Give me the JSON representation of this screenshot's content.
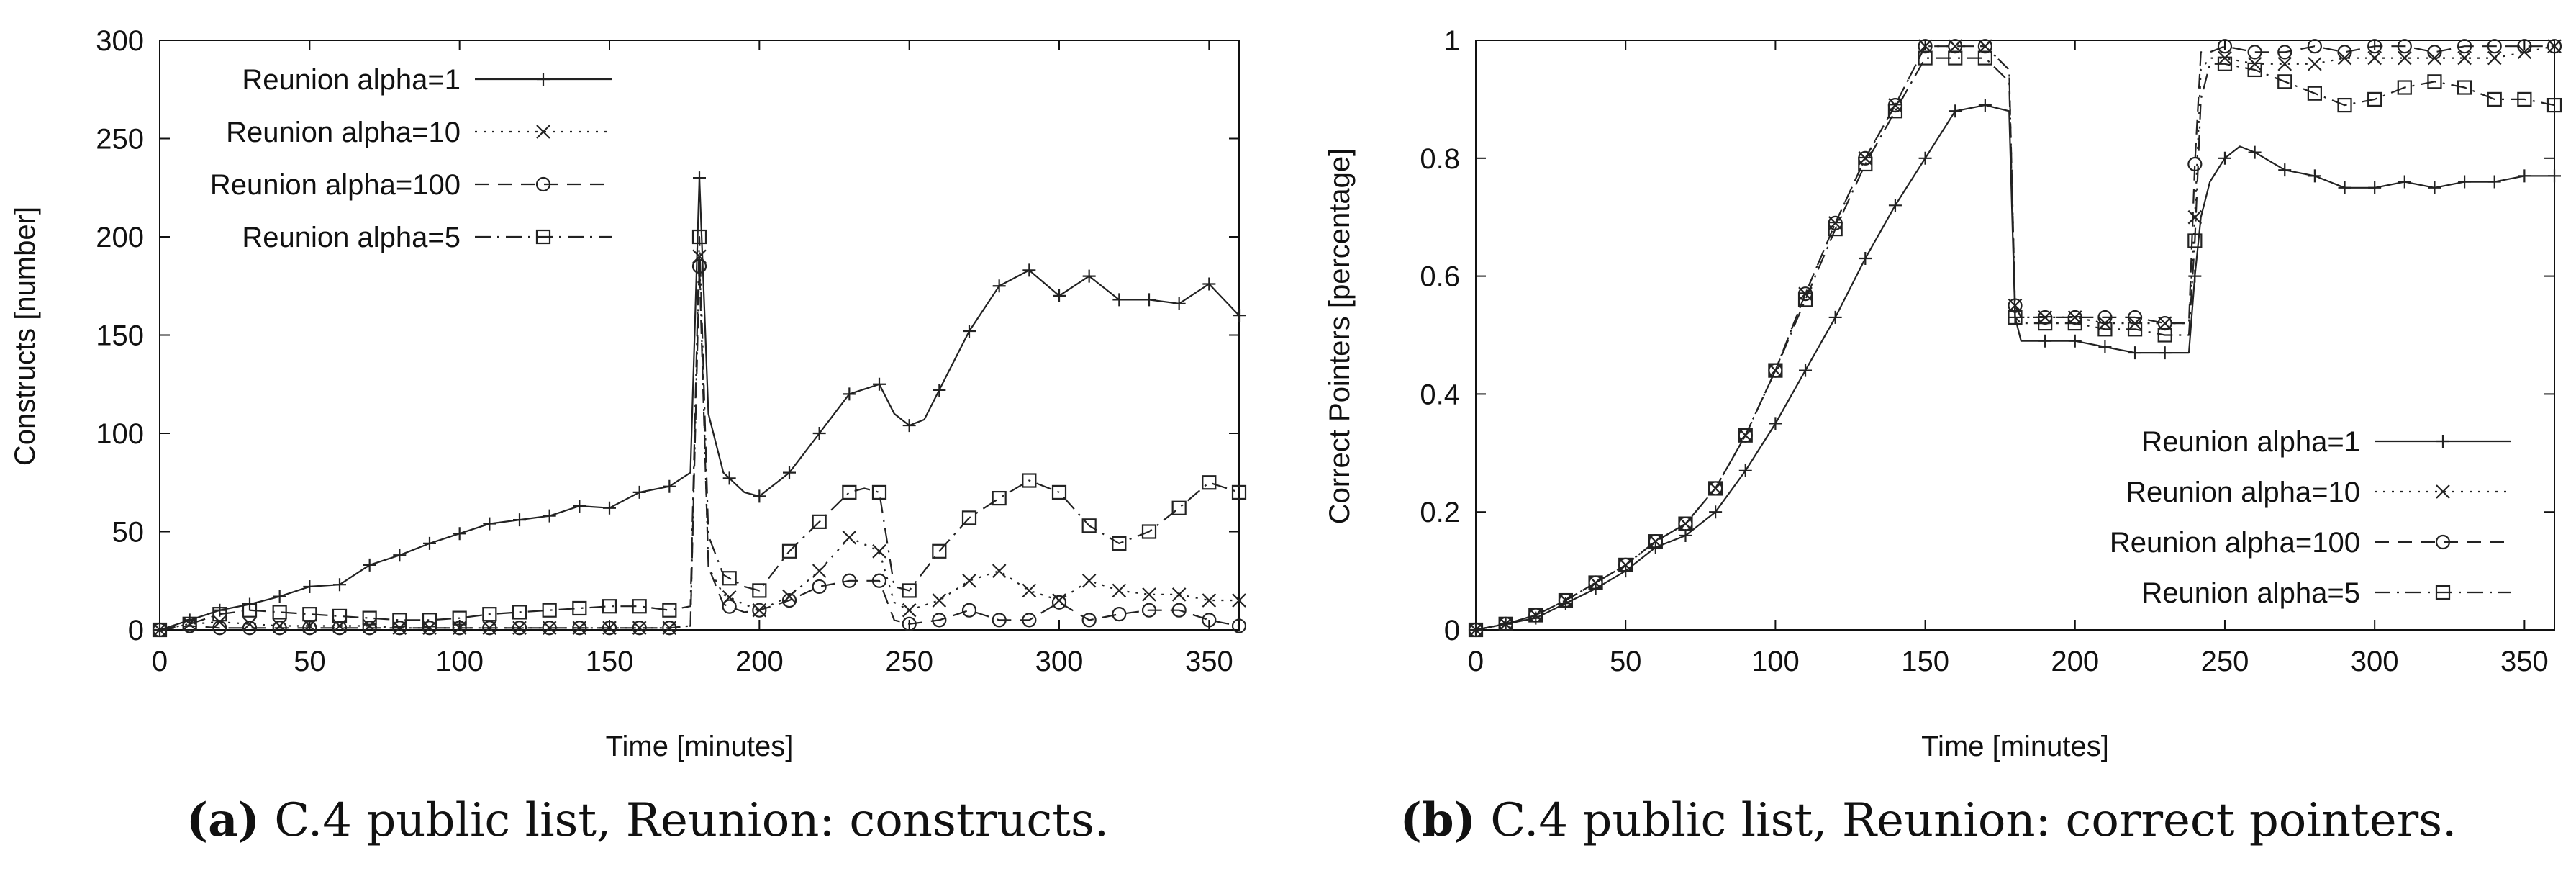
{
  "chart_data": [
    {
      "type": "line",
      "title": "",
      "xlabel": "Time [minutes]",
      "ylabel": "Constructs [number]",
      "xlim": [
        0,
        360
      ],
      "ylim": [
        0,
        300
      ],
      "xticks": [
        0,
        50,
        100,
        150,
        200,
        250,
        300,
        350
      ],
      "yticks": [
        0,
        50,
        100,
        150,
        200,
        250,
        300
      ],
      "xtick_labels": [
        "0",
        "50",
        "100",
        "150",
        "200",
        "250",
        "300",
        "350"
      ],
      "ytick_labels": [
        "0",
        "50",
        "100",
        "150",
        "200",
        "250",
        "300"
      ],
      "legend_position": "top-left",
      "caption": {
        "tag": "a",
        "text": "C.4 public list, Reunion: constructs."
      },
      "series": [
        {
          "name": "Reunion alpha=1",
          "marker": "plus",
          "dash": "solid",
          "x": [
            0,
            10,
            20,
            30,
            40,
            50,
            60,
            70,
            80,
            90,
            100,
            110,
            120,
            130,
            140,
            150,
            160,
            170,
            177,
            180,
            183,
            188,
            195,
            200,
            210,
            220,
            230,
            240,
            245,
            250,
            255,
            260,
            270,
            280,
            290,
            300,
            310,
            320,
            330,
            340,
            350,
            360
          ],
          "y": [
            0,
            5,
            10,
            13,
            17,
            22,
            23,
            33,
            38,
            44,
            49,
            54,
            56,
            58,
            63,
            62,
            70,
            73,
            80,
            230,
            110,
            80,
            70,
            68,
            80,
            100,
            120,
            125,
            110,
            104,
            107,
            122,
            152,
            175,
            183,
            170,
            180,
            168,
            168,
            166,
            176,
            160
          ]
        },
        {
          "name": "Reunion alpha=10",
          "marker": "x",
          "dash": "dot",
          "x": [
            0,
            10,
            20,
            30,
            40,
            50,
            60,
            70,
            80,
            90,
            100,
            110,
            120,
            130,
            140,
            150,
            160,
            170,
            177,
            180,
            183,
            188,
            195,
            200,
            210,
            220,
            230,
            240,
            245,
            250,
            260,
            270,
            280,
            290,
            300,
            310,
            320,
            330,
            340,
            350,
            360
          ],
          "y": [
            0,
            3,
            4,
            3,
            2,
            2,
            2,
            2,
            1,
            1,
            1,
            1,
            1,
            1,
            1,
            1,
            1,
            1,
            2,
            190,
            32,
            18,
            13,
            10,
            17,
            30,
            47,
            40,
            14,
            10,
            15,
            25,
            30,
            20,
            15,
            25,
            20,
            18,
            18,
            15,
            15
          ]
        },
        {
          "name": "Reunion alpha=100",
          "marker": "circle",
          "dash": "dash",
          "x": [
            0,
            10,
            20,
            30,
            40,
            50,
            60,
            70,
            80,
            90,
            100,
            110,
            120,
            130,
            140,
            150,
            160,
            170,
            177,
            180,
            183,
            188,
            195,
            200,
            210,
            220,
            230,
            240,
            245,
            250,
            260,
            270,
            280,
            290,
            300,
            310,
            320,
            330,
            340,
            350,
            360
          ],
          "y": [
            0,
            2,
            1,
            1,
            1,
            1,
            1,
            1,
            1,
            1,
            1,
            1,
            1,
            1,
            1,
            1,
            1,
            1,
            2,
            185,
            32,
            13,
            9,
            10,
            15,
            22,
            25,
            25,
            5,
            3,
            5,
            10,
            5,
            5,
            14,
            5,
            8,
            10,
            10,
            5,
            2
          ]
        },
        {
          "name": "Reunion alpha=5",
          "marker": "square",
          "dash": "dashdot",
          "x": [
            0,
            10,
            20,
            30,
            40,
            50,
            60,
            70,
            80,
            90,
            100,
            110,
            120,
            130,
            140,
            150,
            160,
            170,
            177,
            180,
            183,
            188,
            195,
            200,
            210,
            220,
            230,
            235,
            240,
            245,
            250,
            260,
            270,
            280,
            290,
            300,
            310,
            320,
            330,
            340,
            350,
            360
          ],
          "y": [
            0,
            3,
            8,
            10,
            9,
            8,
            7,
            6,
            5,
            5,
            6,
            8,
            9,
            10,
            11,
            12,
            12,
            10,
            12,
            200,
            48,
            28,
            22,
            20,
            40,
            55,
            70,
            72,
            70,
            22,
            20,
            40,
            57,
            67,
            76,
            70,
            53,
            44,
            50,
            62,
            75,
            70
          ]
        }
      ]
    },
    {
      "type": "line",
      "title": "",
      "xlabel": "Time [minutes]",
      "ylabel": "Correct Pointers [percentage]",
      "xlim": [
        0,
        360
      ],
      "ylim": [
        0,
        1
      ],
      "xticks": [
        0,
        50,
        100,
        150,
        200,
        250,
        300,
        350
      ],
      "yticks": [
        0,
        0.2,
        0.4,
        0.6,
        0.8,
        1
      ],
      "xtick_labels": [
        "0",
        "50",
        "100",
        "150",
        "200",
        "250",
        "300",
        "350"
      ],
      "ytick_labels": [
        "0",
        "0.2",
        "0.4",
        "0.6",
        "0.8",
        "1"
      ],
      "legend_position": "bottom-right",
      "caption": {
        "tag": "b",
        "text": "C.4 public list, Reunion: correct pointers."
      },
      "series": [
        {
          "name": "Reunion alpha=1",
          "marker": "plus",
          "dash": "solid",
          "x": [
            0,
            10,
            20,
            30,
            40,
            50,
            60,
            70,
            80,
            90,
            100,
            110,
            120,
            130,
            140,
            150,
            160,
            170,
            178,
            180,
            182,
            190,
            200,
            210,
            220,
            230,
            238,
            240,
            242,
            245,
            250,
            255,
            260,
            270,
            280,
            290,
            300,
            310,
            320,
            330,
            340,
            350,
            360
          ],
          "y": [
            0,
            0.01,
            0.02,
            0.045,
            0.07,
            0.1,
            0.14,
            0.16,
            0.2,
            0.27,
            0.35,
            0.44,
            0.53,
            0.63,
            0.72,
            0.8,
            0.88,
            0.89,
            0.88,
            0.53,
            0.49,
            0.49,
            0.49,
            0.48,
            0.47,
            0.47,
            0.47,
            0.6,
            0.7,
            0.76,
            0.8,
            0.82,
            0.81,
            0.78,
            0.77,
            0.75,
            0.75,
            0.76,
            0.75,
            0.76,
            0.76,
            0.77,
            0.77
          ]
        },
        {
          "name": "Reunion alpha=10",
          "marker": "x",
          "dash": "dot",
          "x": [
            0,
            10,
            20,
            30,
            40,
            50,
            60,
            70,
            80,
            90,
            100,
            110,
            120,
            130,
            140,
            150,
            160,
            170,
            178,
            180,
            182,
            190,
            200,
            210,
            220,
            230,
            238,
            240,
            242,
            245,
            250,
            260,
            270,
            280,
            290,
            300,
            310,
            320,
            330,
            340,
            350,
            360
          ],
          "y": [
            0,
            0.01,
            0.025,
            0.05,
            0.08,
            0.11,
            0.15,
            0.18,
            0.24,
            0.33,
            0.44,
            0.57,
            0.69,
            0.8,
            0.89,
            0.99,
            0.99,
            0.99,
            0.95,
            0.55,
            0.53,
            0.53,
            0.53,
            0.52,
            0.52,
            0.52,
            0.52,
            0.7,
            0.95,
            0.97,
            0.97,
            0.96,
            0.96,
            0.96,
            0.97,
            0.97,
            0.97,
            0.97,
            0.97,
            0.97,
            0.98,
            0.99
          ]
        },
        {
          "name": "Reunion alpha=100",
          "marker": "circle",
          "dash": "dash",
          "x": [
            0,
            10,
            20,
            30,
            40,
            50,
            60,
            70,
            80,
            90,
            100,
            110,
            120,
            130,
            140,
            150,
            160,
            170,
            178,
            180,
            182,
            190,
            200,
            210,
            220,
            230,
            238,
            240,
            242,
            245,
            250,
            260,
            270,
            280,
            290,
            300,
            310,
            320,
            330,
            340,
            350,
            360
          ],
          "y": [
            0,
            0.01,
            0.025,
            0.05,
            0.08,
            0.11,
            0.15,
            0.18,
            0.24,
            0.33,
            0.44,
            0.57,
            0.69,
            0.8,
            0.89,
            0.99,
            0.99,
            0.99,
            0.95,
            0.55,
            0.53,
            0.53,
            0.53,
            0.53,
            0.53,
            0.52,
            0.52,
            0.79,
            0.98,
            0.98,
            0.99,
            0.98,
            0.98,
            0.99,
            0.98,
            0.99,
            0.99,
            0.98,
            0.99,
            0.99,
            0.99,
            0.99
          ]
        },
        {
          "name": "Reunion alpha=5",
          "marker": "square",
          "dash": "dashdot",
          "x": [
            0,
            10,
            20,
            30,
            40,
            50,
            60,
            70,
            80,
            90,
            100,
            110,
            120,
            130,
            140,
            150,
            160,
            170,
            178,
            180,
            182,
            190,
            200,
            210,
            220,
            230,
            238,
            240,
            242,
            245,
            250,
            260,
            270,
            280,
            290,
            300,
            310,
            320,
            330,
            340,
            350,
            360
          ],
          "y": [
            0,
            0.01,
            0.025,
            0.05,
            0.08,
            0.11,
            0.15,
            0.18,
            0.24,
            0.33,
            0.44,
            0.56,
            0.68,
            0.79,
            0.88,
            0.97,
            0.97,
            0.97,
            0.93,
            0.53,
            0.52,
            0.52,
            0.52,
            0.51,
            0.51,
            0.5,
            0.5,
            0.66,
            0.9,
            0.96,
            0.96,
            0.95,
            0.93,
            0.91,
            0.89,
            0.9,
            0.92,
            0.93,
            0.92,
            0.9,
            0.9,
            0.89
          ]
        }
      ]
    }
  ]
}
